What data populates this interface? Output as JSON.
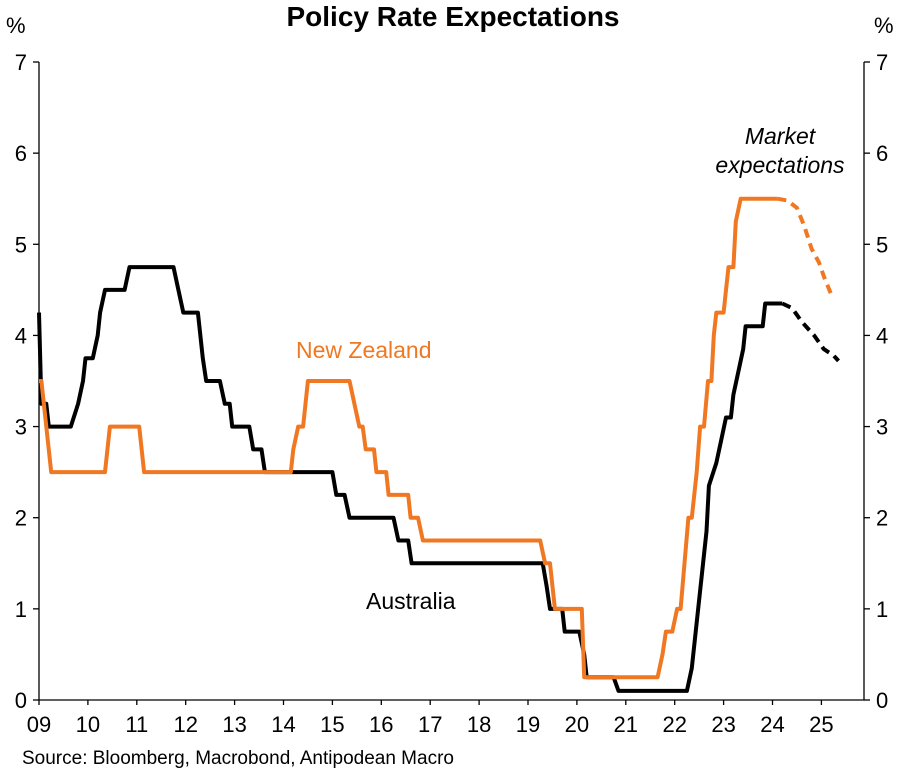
{
  "chart_data": {
    "type": "line",
    "title": "Policy Rate Expectations",
    "y_unit_left": "%",
    "y_unit_right": "%",
    "xlim": [
      2009.0,
      2025.9
    ],
    "ylim": [
      0,
      7
    ],
    "y_ticks": [
      "0",
      "1",
      "2",
      "3",
      "4",
      "5",
      "6",
      "7"
    ],
    "x_ticks": [
      "09",
      "10",
      "11",
      "12",
      "13",
      "14",
      "15",
      "16",
      "17",
      "18",
      "19",
      "20",
      "21",
      "22",
      "23",
      "24",
      "25"
    ],
    "annotation": [
      "Market",
      "expectations"
    ],
    "source": "Source: Bloomberg, Macrobond, Antipodean Macro",
    "grid": false,
    "series": [
      {
        "name": "Australia",
        "color": "#000000",
        "actual": [
          [
            2009.0,
            4.25
          ],
          [
            2009.05,
            3.25
          ],
          [
            2009.15,
            3.25
          ],
          [
            2009.2,
            3.0
          ],
          [
            2009.65,
            3.0
          ],
          [
            2009.8,
            3.25
          ],
          [
            2009.9,
            3.5
          ],
          [
            2009.95,
            3.75
          ],
          [
            2010.1,
            3.75
          ],
          [
            2010.2,
            4.0
          ],
          [
            2010.25,
            4.25
          ],
          [
            2010.35,
            4.5
          ],
          [
            2010.75,
            4.5
          ],
          [
            2010.85,
            4.75
          ],
          [
            2011.75,
            4.75
          ],
          [
            2011.85,
            4.5
          ],
          [
            2011.95,
            4.25
          ],
          [
            2012.25,
            4.25
          ],
          [
            2012.35,
            3.75
          ],
          [
            2012.42,
            3.5
          ],
          [
            2012.7,
            3.5
          ],
          [
            2012.8,
            3.25
          ],
          [
            2012.9,
            3.25
          ],
          [
            2012.95,
            3.0
          ],
          [
            2013.3,
            3.0
          ],
          [
            2013.38,
            2.75
          ],
          [
            2013.55,
            2.75
          ],
          [
            2013.62,
            2.5
          ],
          [
            2015.0,
            2.5
          ],
          [
            2015.08,
            2.25
          ],
          [
            2015.25,
            2.25
          ],
          [
            2015.35,
            2.0
          ],
          [
            2016.25,
            2.0
          ],
          [
            2016.35,
            1.75
          ],
          [
            2016.55,
            1.75
          ],
          [
            2016.62,
            1.5
          ],
          [
            2019.3,
            1.5
          ],
          [
            2019.38,
            1.25
          ],
          [
            2019.45,
            1.0
          ],
          [
            2019.7,
            1.0
          ],
          [
            2019.75,
            0.75
          ],
          [
            2020.05,
            0.75
          ],
          [
            2020.15,
            0.5
          ],
          [
            2020.2,
            0.25
          ],
          [
            2020.75,
            0.25
          ],
          [
            2020.85,
            0.1
          ],
          [
            2022.25,
            0.1
          ],
          [
            2022.35,
            0.35
          ],
          [
            2022.45,
            0.85
          ],
          [
            2022.55,
            1.35
          ],
          [
            2022.65,
            1.85
          ],
          [
            2022.7,
            2.35
          ],
          [
            2022.85,
            2.6
          ],
          [
            2022.95,
            2.85
          ],
          [
            2023.05,
            3.1
          ],
          [
            2023.15,
            3.1
          ],
          [
            2023.2,
            3.35
          ],
          [
            2023.3,
            3.6
          ],
          [
            2023.4,
            3.85
          ],
          [
            2023.45,
            4.1
          ],
          [
            2023.8,
            4.1
          ],
          [
            2023.85,
            4.35
          ],
          [
            2024.2,
            4.35
          ]
        ],
        "expected": [
          [
            2024.2,
            4.35
          ],
          [
            2024.4,
            4.3
          ],
          [
            2024.6,
            4.15
          ],
          [
            2024.85,
            4.0
          ],
          [
            2025.05,
            3.85
          ],
          [
            2025.25,
            3.78
          ],
          [
            2025.35,
            3.72
          ]
        ]
      },
      {
        "name": "New Zealand",
        "color": "#F07822",
        "actual": [
          [
            2009.0,
            3.5
          ],
          [
            2009.05,
            3.5
          ],
          [
            2009.15,
            3.0
          ],
          [
            2009.25,
            2.5
          ],
          [
            2010.35,
            2.5
          ],
          [
            2010.45,
            3.0
          ],
          [
            2011.05,
            3.0
          ],
          [
            2011.15,
            2.5
          ],
          [
            2014.15,
            2.5
          ],
          [
            2014.2,
            2.75
          ],
          [
            2014.3,
            3.0
          ],
          [
            2014.4,
            3.0
          ],
          [
            2014.45,
            3.25
          ],
          [
            2014.5,
            3.5
          ],
          [
            2015.35,
            3.5
          ],
          [
            2015.45,
            3.25
          ],
          [
            2015.55,
            3.0
          ],
          [
            2015.62,
            3.0
          ],
          [
            2015.68,
            2.75
          ],
          [
            2015.85,
            2.75
          ],
          [
            2015.9,
            2.5
          ],
          [
            2016.1,
            2.5
          ],
          [
            2016.15,
            2.25
          ],
          [
            2016.55,
            2.25
          ],
          [
            2016.6,
            2.0
          ],
          [
            2016.75,
            2.0
          ],
          [
            2016.85,
            1.75
          ],
          [
            2019.25,
            1.75
          ],
          [
            2019.35,
            1.5
          ],
          [
            2019.45,
            1.5
          ],
          [
            2019.55,
            1.0
          ],
          [
            2020.1,
            1.0
          ],
          [
            2020.15,
            0.25
          ],
          [
            2021.65,
            0.25
          ],
          [
            2021.75,
            0.5
          ],
          [
            2021.82,
            0.75
          ],
          [
            2021.95,
            0.75
          ],
          [
            2022.05,
            1.0
          ],
          [
            2022.12,
            1.0
          ],
          [
            2022.2,
            1.5
          ],
          [
            2022.28,
            2.0
          ],
          [
            2022.35,
            2.0
          ],
          [
            2022.45,
            2.5
          ],
          [
            2022.52,
            3.0
          ],
          [
            2022.6,
            3.0
          ],
          [
            2022.68,
            3.5
          ],
          [
            2022.75,
            3.5
          ],
          [
            2022.8,
            4.0
          ],
          [
            2022.85,
            4.25
          ],
          [
            2023.0,
            4.25
          ],
          [
            2023.05,
            4.5
          ],
          [
            2023.1,
            4.75
          ],
          [
            2023.2,
            4.75
          ],
          [
            2023.25,
            5.25
          ],
          [
            2023.35,
            5.5
          ],
          [
            2024.1,
            5.5
          ]
        ],
        "expected": [
          [
            2024.1,
            5.5
          ],
          [
            2024.3,
            5.48
          ],
          [
            2024.5,
            5.4
          ],
          [
            2024.65,
            5.2
          ],
          [
            2024.8,
            4.95
          ],
          [
            2024.95,
            4.8
          ],
          [
            2025.05,
            4.65
          ],
          [
            2025.2,
            4.45
          ]
        ]
      }
    ]
  }
}
